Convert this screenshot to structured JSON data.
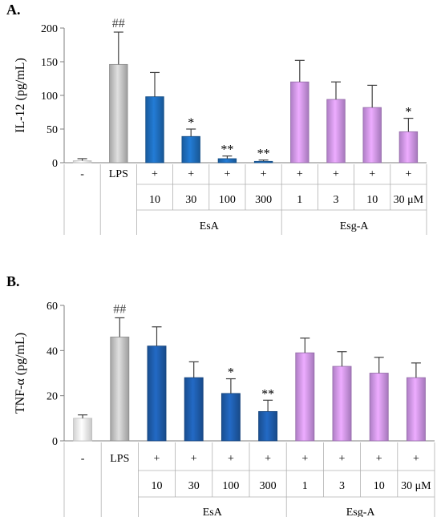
{
  "chart_data": [
    {
      "type": "bar",
      "panel_label": "A.",
      "ylabel": "IL-12 (pg/mL)",
      "ylim": [
        0,
        200
      ],
      "yticks": [
        0,
        50,
        100,
        150,
        200
      ],
      "categories": [
        "-",
        "LPS",
        "EsA 10",
        "EsA 30",
        "EsA 100",
        "EsA 300",
        "Esg-A 1",
        "Esg-A 3",
        "Esg-A 10",
        "Esg-A 30"
      ],
      "values": [
        3,
        146,
        98,
        39,
        6,
        2,
        120,
        94,
        82,
        46
      ],
      "errors": [
        3,
        48,
        36,
        11,
        4,
        2,
        32,
        26,
        33,
        20
      ],
      "significance": [
        "",
        "##",
        "",
        "*",
        "**",
        "**",
        "",
        "",
        "",
        "*"
      ],
      "lps_row": [
        "-",
        "LPS",
        "+",
        "+",
        "+",
        "+",
        "+",
        "+",
        "+",
        "+"
      ],
      "dose_row": [
        "",
        "",
        "10",
        "30",
        "100",
        "300",
        "1",
        "3",
        "10",
        "30 μM"
      ],
      "groups": [
        {
          "label": "EsA",
          "start": 2,
          "end": 5
        },
        {
          "label": "Esg-A",
          "start": 6,
          "end": 9
        }
      ],
      "colors": [
        "#ffffff",
        "#c8c8c8",
        "#1f6fbf",
        "#1f6fbf",
        "#1f6fbf",
        "#1f6fbf",
        "#d49af0",
        "#d49af0",
        "#d49af0",
        "#d49af0"
      ]
    },
    {
      "type": "bar",
      "panel_label": "B.",
      "ylabel": "TNF-α (pg/mL)",
      "ylim": [
        0,
        60
      ],
      "yticks": [
        0,
        20,
        40,
        60
      ],
      "categories": [
        "-",
        "LPS",
        "EsA 10",
        "EsA 30",
        "EsA 100",
        "EsA 300",
        "Esg-A 1",
        "Esg-A 3",
        "Esg-A 10",
        "Esg-A 30"
      ],
      "values": [
        10,
        46,
        42,
        28,
        21,
        13,
        39,
        33,
        30,
        28
      ],
      "errors": [
        1.5,
        8.5,
        8.5,
        7,
        6.5,
        5,
        6.5,
        6.5,
        7,
        6.5
      ],
      "significance": [
        "",
        "##",
        "",
        "",
        "*",
        "**",
        "",
        "",
        "",
        ""
      ],
      "lps_row": [
        "-",
        "LPS",
        "+",
        "+",
        "+",
        "+",
        "+",
        "+",
        "+",
        "+"
      ],
      "dose_row": [
        "",
        "",
        "10",
        "30",
        "100",
        "300",
        "1",
        "3",
        "10",
        "30 μM"
      ],
      "groups": [
        {
          "label": "EsA",
          "start": 2,
          "end": 5
        },
        {
          "label": "Esg-A",
          "start": 6,
          "end": 9
        }
      ],
      "colors": [
        "#ffffff",
        "#c8c8c8",
        "#1f5fb0",
        "#1f5fb0",
        "#1f5fb0",
        "#1f5fb0",
        "#d49af0",
        "#d49af0",
        "#d49af0",
        "#d49af0"
      ]
    }
  ]
}
